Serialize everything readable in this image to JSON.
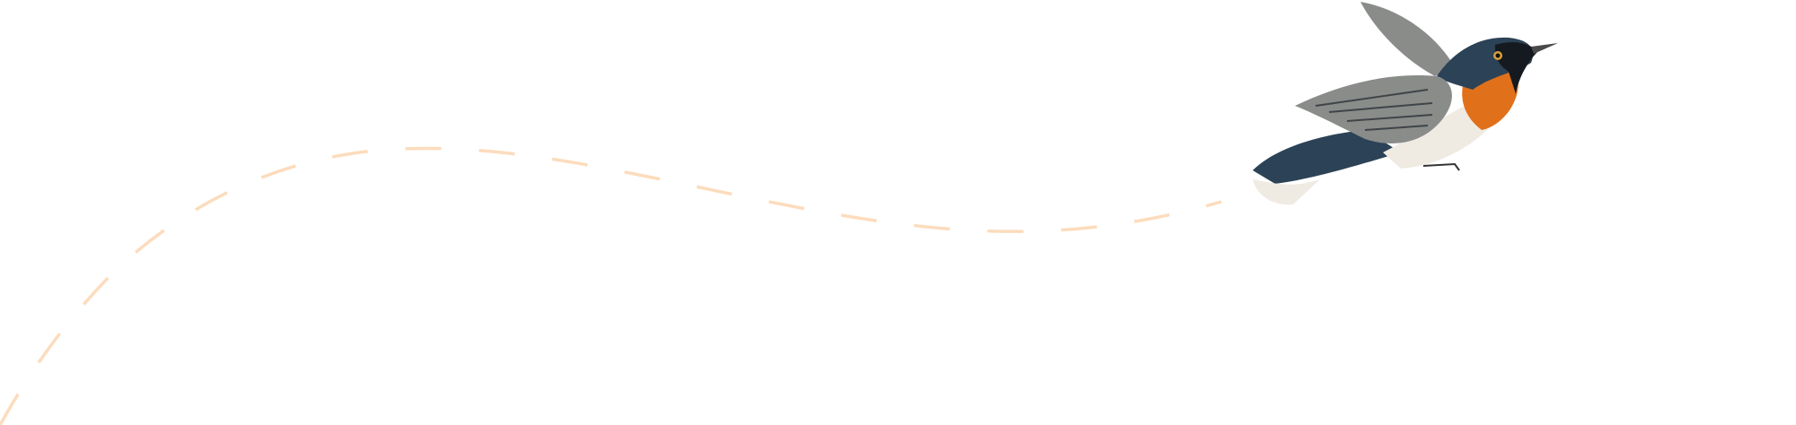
{
  "illustration": {
    "subject": "flying-bird",
    "colors": {
      "flight_path": "#fcdcbd",
      "bird_back": "#2c4256",
      "bird_throat": "#e0701a",
      "bird_belly": "#efeae2",
      "bird_wing": "#8a8c8a",
      "bird_mask": "#151a20"
    }
  }
}
